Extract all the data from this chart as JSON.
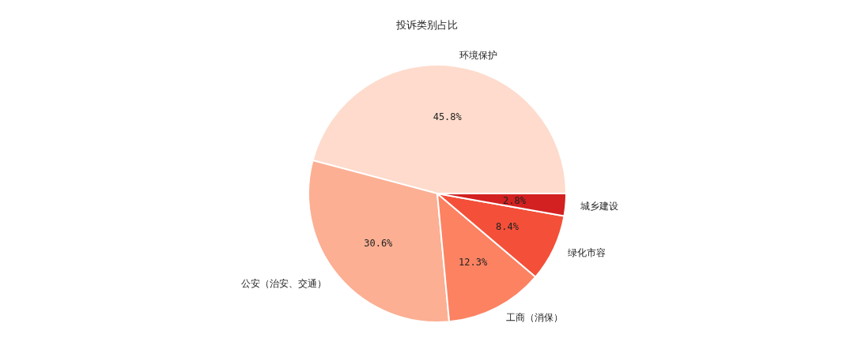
{
  "chart_data": {
    "type": "pie",
    "title": "投诉类别占比",
    "categories": [
      "环境保护",
      "公安（治安、交通）",
      "工商（消保）",
      "绿化市容",
      "城乡建设"
    ],
    "values": [
      45.8,
      30.6,
      12.3,
      8.4,
      2.8
    ],
    "value_labels": [
      "45.8%",
      "30.6%",
      "12.3%",
      "8.4%",
      "2.8%"
    ],
    "colors": [
      "#fedbcc",
      "#fcaf93",
      "#fc8262",
      "#f44f39",
      "#d32020"
    ]
  }
}
